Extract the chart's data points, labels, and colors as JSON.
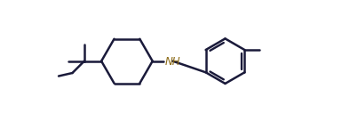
{
  "bg_color": "#ffffff",
  "line_color": "#1a1a3a",
  "nh_color": "#8B6914",
  "lw": 1.8,
  "nh_label": "NH",
  "nh_fontsize": 8.5,
  "xlim": [
    0.0,
    8.5
  ],
  "ylim": [
    0.2,
    3.0
  ]
}
